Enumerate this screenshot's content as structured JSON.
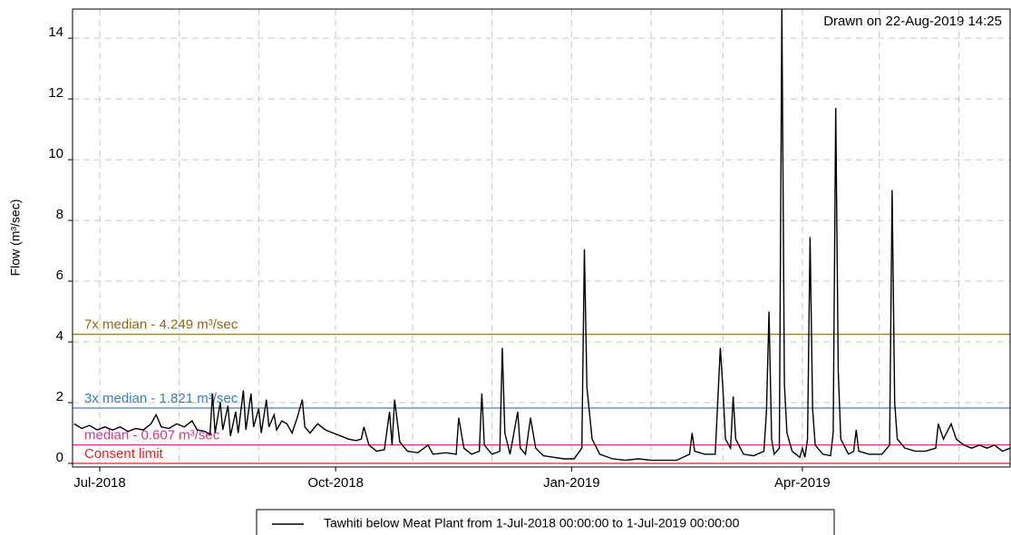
{
  "chart_data": {
    "type": "line",
    "annotation": "Drawn on 22-Aug-2019 14:25",
    "ylabel": "Flow (m³/sec)",
    "xlim": [
      -10.6,
      355
    ],
    "ylim": [
      -0.12,
      14.96
    ],
    "xticks": [
      {
        "value": 0,
        "label": "Jul-2018"
      },
      {
        "value": 92,
        "label": "Oct-2018"
      },
      {
        "value": 184,
        "label": "Jan-2019"
      },
      {
        "value": 274,
        "label": "Apr-2019"
      }
    ],
    "xgrid": [
      31,
      62,
      122,
      153,
      215,
      243,
      304,
      335
    ],
    "yticks": [
      0,
      2,
      4,
      6,
      8,
      10,
      12,
      14
    ],
    "grid": true,
    "reference_lines": [
      {
        "label": "7x median - 4.249 m³/sec",
        "value": 4.249,
        "color": "#8b6914"
      },
      {
        "label": "3x median - 1.821 m³/sec",
        "value": 1.821,
        "color": "#3a7fc1"
      },
      {
        "label": "median - 0.607 m³/sec",
        "value": 0.607,
        "color": "#d9338a"
      },
      {
        "label": "Consent limit",
        "value": 0,
        "color": "#e0202a"
      }
    ],
    "x": [
      -10,
      -7,
      -4,
      -1,
      2,
      5,
      8,
      11,
      14,
      17,
      20,
      22,
      24,
      27,
      30,
      33,
      36,
      38,
      41,
      43,
      44,
      45,
      47,
      48,
      50,
      51,
      53,
      54,
      56,
      57,
      59,
      60,
      62,
      63,
      65,
      66,
      68,
      69,
      71,
      73,
      75,
      77,
      79,
      80,
      82,
      85,
      88,
      91,
      94,
      97,
      100,
      102,
      103,
      105,
      108,
      111,
      113,
      114,
      115,
      117,
      120,
      124,
      128,
      130,
      135,
      139,
      140,
      142,
      145,
      148,
      149,
      150,
      153,
      156,
      157,
      158,
      160,
      163,
      164,
      166,
      168,
      170,
      173,
      177,
      181,
      185,
      188,
      189,
      190,
      192,
      195,
      200,
      205,
      210,
      215,
      220,
      225,
      230,
      231,
      232,
      236,
      240,
      242,
      243,
      244,
      246,
      247,
      248,
      251,
      255,
      259,
      260,
      261,
      262,
      263,
      265,
      266,
      267,
      268,
      270,
      273,
      274,
      275,
      276,
      277,
      278,
      279,
      282,
      285,
      286,
      287,
      288,
      289,
      292,
      294,
      295,
      296,
      300,
      305,
      308,
      309,
      310,
      311,
      314,
      318,
      322,
      326,
      327,
      329,
      332,
      334,
      337,
      340,
      343,
      346,
      349,
      352,
      355
    ],
    "series": [
      {
        "name": "Tawhiti below Meat Plant from  1-Jul-2018 00:00:00 to  1-Jul-2019 00:00:00",
        "color": "#000000",
        "values": [
          1.3,
          1.15,
          1.25,
          1.1,
          1.2,
          1.1,
          1.2,
          1.05,
          1.15,
          1.1,
          1.3,
          1.6,
          1.2,
          1.15,
          1.3,
          1.2,
          1.4,
          1.1,
          1.05,
          0.95,
          2.3,
          1.0,
          2.0,
          1.1,
          1.9,
          0.9,
          1.7,
          1.0,
          2.4,
          1.1,
          2.3,
          1.2,
          1.8,
          1.0,
          2.1,
          1.2,
          1.6,
          1.1,
          1.4,
          1.3,
          1.0,
          1.5,
          2.1,
          1.2,
          1.0,
          1.3,
          1.1,
          1.0,
          0.9,
          0.8,
          0.75,
          0.8,
          1.2,
          0.6,
          0.4,
          0.45,
          1.7,
          0.6,
          2.1,
          0.7,
          0.4,
          0.35,
          0.6,
          0.3,
          0.35,
          0.3,
          1.5,
          0.5,
          0.3,
          0.4,
          2.3,
          0.6,
          0.3,
          0.4,
          3.8,
          1.0,
          0.3,
          1.7,
          0.5,
          0.3,
          1.5,
          0.5,
          0.25,
          0.2,
          0.15,
          0.15,
          0.5,
          7.05,
          2.5,
          0.8,
          0.3,
          0.15,
          0.1,
          0.15,
          0.1,
          0.1,
          0.1,
          0.3,
          1.0,
          0.4,
          0.3,
          0.3,
          3.8,
          2.5,
          0.8,
          0.5,
          2.2,
          0.8,
          0.3,
          0.25,
          0.4,
          1.7,
          5.0,
          0.8,
          0.3,
          0.5,
          14.96,
          2.6,
          1.0,
          0.4,
          0.2,
          0.5,
          0.2,
          0.8,
          7.45,
          1.8,
          0.6,
          0.3,
          0.25,
          1.0,
          11.7,
          3.0,
          0.8,
          0.3,
          0.4,
          1.1,
          0.4,
          0.3,
          0.3,
          0.6,
          9.0,
          2.0,
          0.8,
          0.5,
          0.4,
          0.4,
          0.5,
          1.3,
          0.8,
          1.3,
          0.8,
          0.6,
          0.5,
          0.6,
          0.5,
          0.6,
          0.4,
          0.5
        ]
      }
    ]
  }
}
